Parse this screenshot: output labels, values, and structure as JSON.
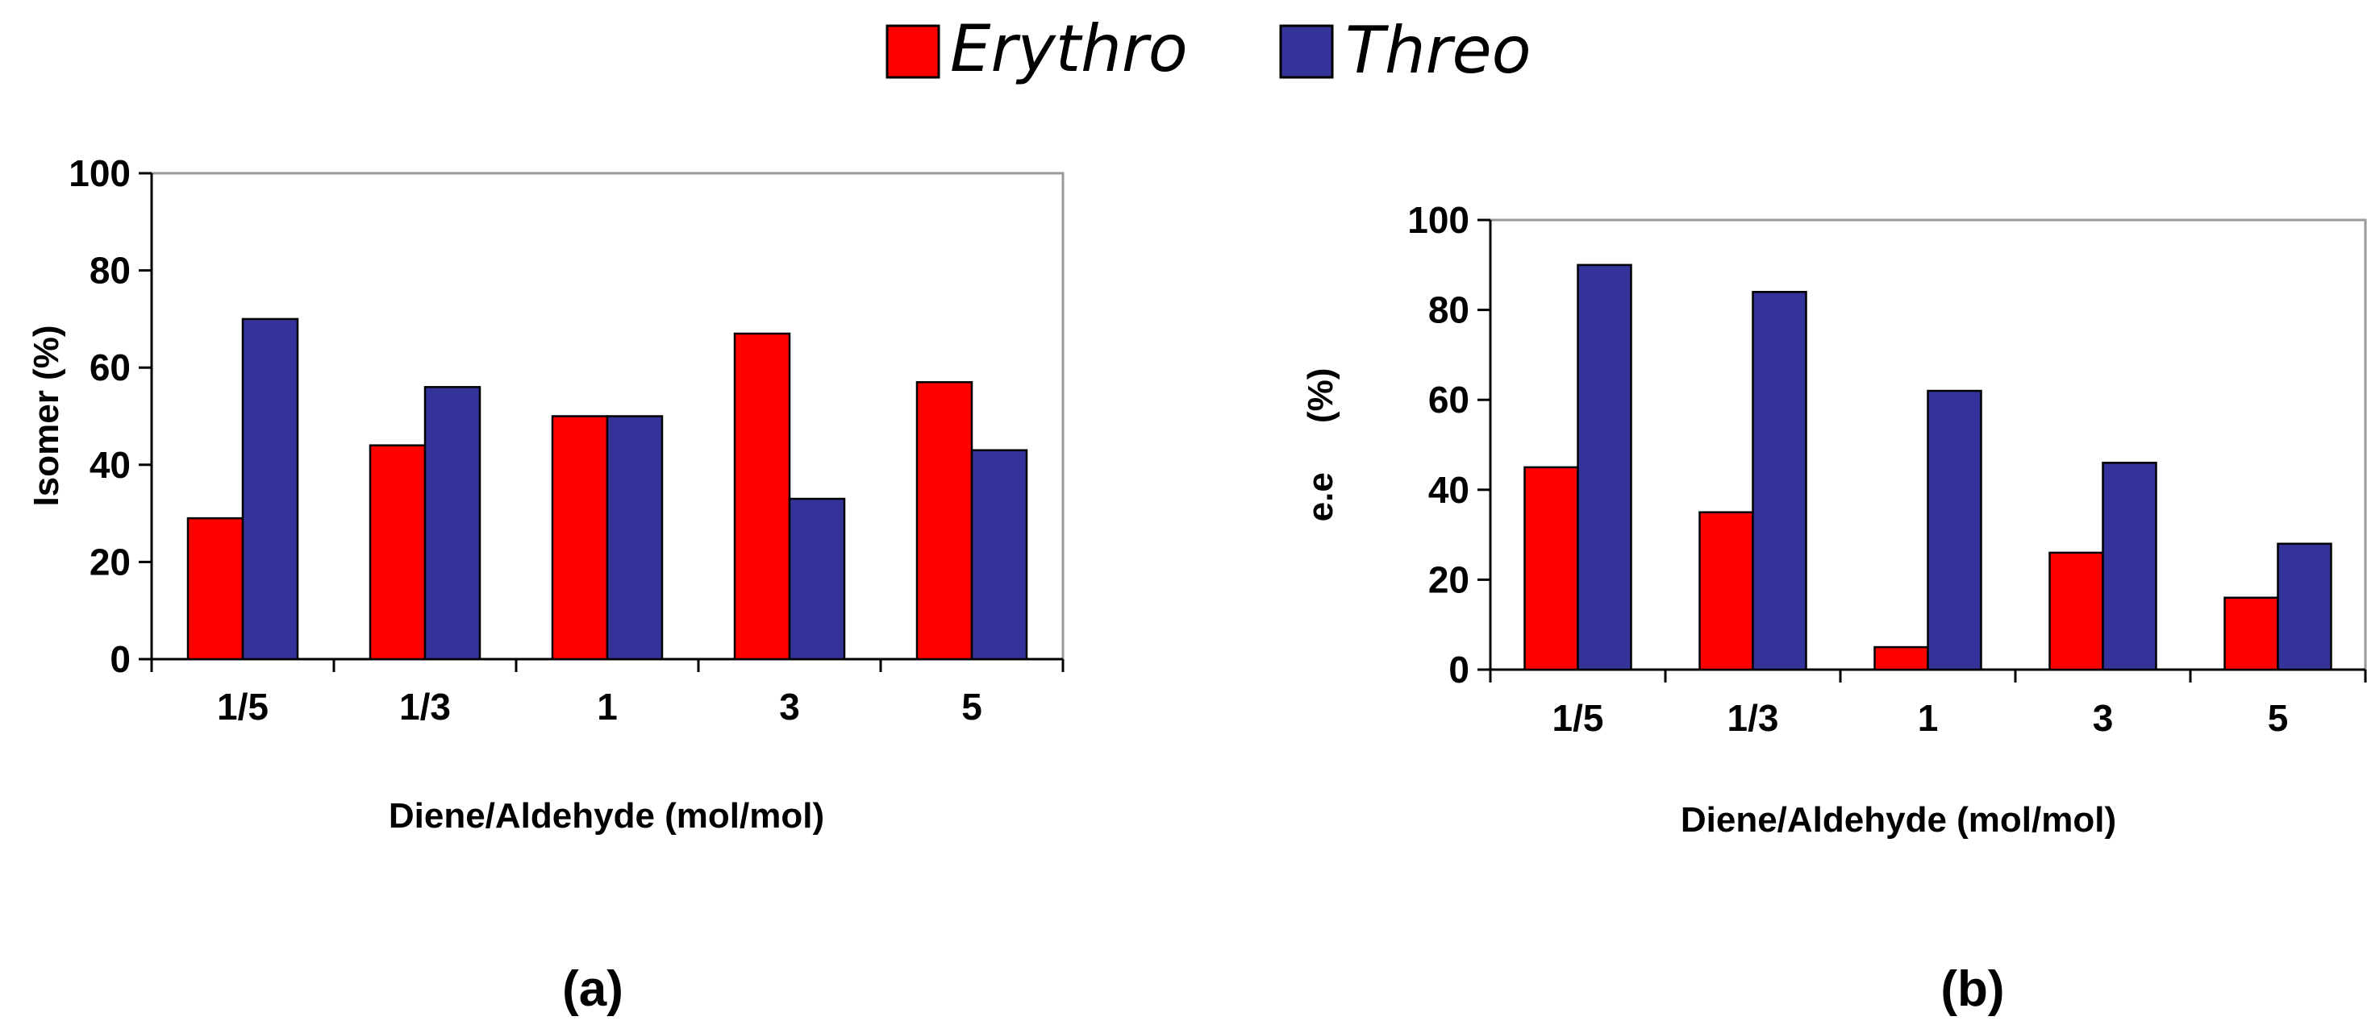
{
  "legend": [
    {
      "name": "Erythro",
      "color": "#ff0000"
    },
    {
      "name": "Threo",
      "color": "#333399"
    }
  ],
  "chart_data": [
    {
      "type": "bar",
      "panel_label": "(a)",
      "categories": [
        "1/5",
        "1/3",
        "1",
        "3",
        "5"
      ],
      "series": [
        {
          "name": "Erythro",
          "color": "#ff0000",
          "values": [
            29,
            44,
            50,
            67,
            57
          ]
        },
        {
          "name": "Threo",
          "color": "#333399",
          "values": [
            70,
            56,
            50,
            33,
            43
          ]
        }
      ],
      "xlabel": "Diene/Aldehyde (mol/mol)",
      "ylabel": "Isomer (%)",
      "ylim": [
        0,
        100
      ],
      "yticks": [
        0,
        20,
        40,
        60,
        80,
        100
      ],
      "grid": false
    },
    {
      "type": "bar",
      "panel_label": "(b)",
      "categories": [
        "1/5",
        "1/3",
        "1",
        "3",
        "5"
      ],
      "series": [
        {
          "name": "Erythro",
          "color": "#ff0000",
          "values": [
            45,
            35,
            5,
            26,
            16
          ]
        },
        {
          "name": "Threo",
          "color": "#333399",
          "values": [
            90,
            84,
            62,
            46,
            28
          ]
        }
      ],
      "xlabel": "Diene/Aldehyde (mol/mol)",
      "ylabel": "e.e     (%)",
      "ylim": [
        0,
        100
      ],
      "yticks": [
        0,
        20,
        40,
        60,
        80,
        100
      ],
      "grid": false
    }
  ]
}
